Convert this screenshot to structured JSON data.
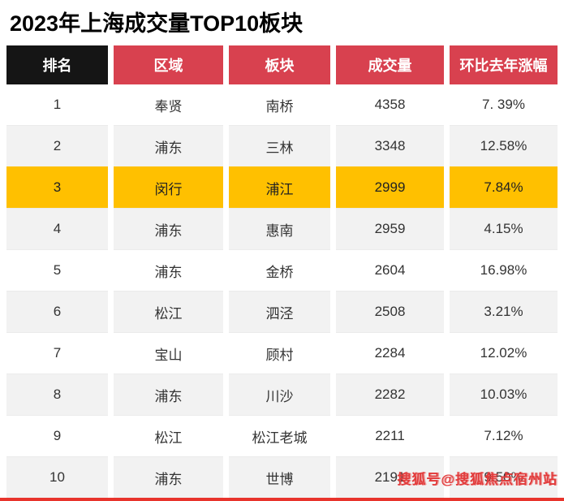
{
  "title": "2023年上海成交量TOP10板块",
  "table": {
    "headers": [
      "排名",
      "区域",
      "板块",
      "成交量",
      "环比去年涨幅"
    ],
    "highlight_index": 2,
    "rows": [
      {
        "rank": "1",
        "district": "奉贤",
        "area": "南桥",
        "volume": "4358",
        "change": "7. 39%"
      },
      {
        "rank": "2",
        "district": "浦东",
        "area": "三林",
        "volume": "3348",
        "change": "12.58%"
      },
      {
        "rank": "3",
        "district": "闵行",
        "area": "浦江",
        "volume": "2999",
        "change": "7.84%"
      },
      {
        "rank": "4",
        "district": "浦东",
        "area": "惠南",
        "volume": "2959",
        "change": "4.15%"
      },
      {
        "rank": "5",
        "district": "浦东",
        "area": "金桥",
        "volume": "2604",
        "change": "16.98%"
      },
      {
        "rank": "6",
        "district": "松江",
        "area": "泗泾",
        "volume": "2508",
        "change": "3.21%"
      },
      {
        "rank": "7",
        "district": "宝山",
        "area": "顾村",
        "volume": "2284",
        "change": "12.02%"
      },
      {
        "rank": "8",
        "district": "浦东",
        "area": "川沙",
        "volume": "2282",
        "change": "10.03%"
      },
      {
        "rank": "9",
        "district": "松江",
        "area": "松江老城",
        "volume": "2211",
        "change": "7.12%"
      },
      {
        "rank": "10",
        "district": "浦东",
        "area": "世博",
        "volume": "2191",
        "change": "9.50%"
      }
    ]
  },
  "watermark": "搜狐号@搜狐焦点宿州站",
  "colors": {
    "header_red": "#D8414F",
    "header_black": "#151515",
    "highlight_gold": "#FFC000",
    "row_alt_gray": "#F2F2F2",
    "watermark_red": "#E23B3B",
    "bottom_line_red": "#E8342C"
  },
  "chart_data": {
    "type": "table",
    "title": "2023年上海成交量TOP10板块",
    "columns": [
      "排名",
      "区域",
      "板块",
      "成交量",
      "环比去年涨幅"
    ],
    "rows": [
      [
        1,
        "奉贤",
        "南桥",
        4358,
        "7.39%"
      ],
      [
        2,
        "浦东",
        "三林",
        3348,
        "12.58%"
      ],
      [
        3,
        "闵行",
        "浦江",
        2999,
        "7.84%"
      ],
      [
        4,
        "浦东",
        "惠南",
        2959,
        "4.15%"
      ],
      [
        5,
        "浦东",
        "金桥",
        2604,
        "16.98%"
      ],
      [
        6,
        "松江",
        "泗泾",
        2508,
        "3.21%"
      ],
      [
        7,
        "宝山",
        "顾村",
        2284,
        "12.02%"
      ],
      [
        8,
        "浦东",
        "川沙",
        2282,
        "10.03%"
      ],
      [
        9,
        "松江",
        "松江老城",
        2211,
        "7.12%"
      ],
      [
        10,
        "浦东",
        "世博",
        2191,
        "9.50%"
      ]
    ],
    "highlight_row_rank": 3,
    "notes": "rank 3 row highlighted gold; headers white on red (rank header black); alternating white/gray rows"
  }
}
